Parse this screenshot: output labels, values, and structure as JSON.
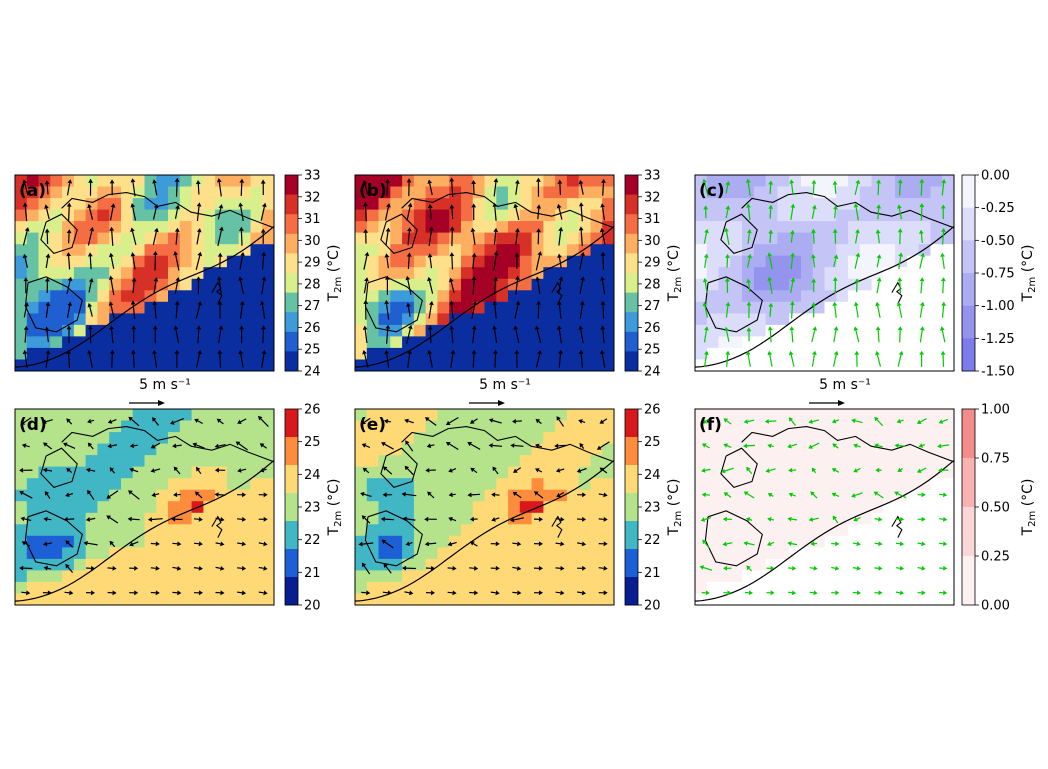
{
  "figure": {
    "panels": [
      {
        "label": "(a)",
        "kind": "abs",
        "scale": "warm",
        "arrow_color": "#000000",
        "background_shift": 0
      },
      {
        "label": "(b)",
        "kind": "abs",
        "scale": "warm",
        "arrow_color": "#000000",
        "background_shift": 0.15
      },
      {
        "label": "(c)",
        "kind": "diff",
        "scale": "blue",
        "arrow_color": "#00cc00"
      },
      {
        "label": "(d)",
        "kind": "abs",
        "scale": "night",
        "arrow_color": "#000000",
        "background_shift": 0
      },
      {
        "label": "(e)",
        "kind": "abs",
        "scale": "night",
        "arrow_color": "#000000",
        "background_shift": 0.05
      },
      {
        "label": "(f)",
        "kind": "diff",
        "scale": "red",
        "arrow_color": "#00cc00"
      }
    ],
    "colorbars": [
      {
        "panel": "(a)",
        "ticks": [
          "33",
          "32",
          "31",
          "30",
          "29",
          "28",
          "27",
          "26",
          "25",
          "24"
        ],
        "colors": [
          "#a50026",
          "#d73027",
          "#f46d43",
          "#fdae61",
          "#fee08b",
          "#d9ef8b",
          "#66c2a5",
          "#3d9bd9",
          "#1f5fd0",
          "#0a2ea0"
        ]
      },
      {
        "panel": "(b)",
        "ticks": [
          "33",
          "32",
          "31",
          "30",
          "29",
          "28",
          "27",
          "26",
          "25",
          "24"
        ],
        "colors": [
          "#a50026",
          "#d73027",
          "#f46d43",
          "#fdae61",
          "#fee08b",
          "#d9ef8b",
          "#66c2a5",
          "#3d9bd9",
          "#1f5fd0",
          "#0a2ea0"
        ]
      },
      {
        "panel": "(c)",
        "ticks": [
          "0.00",
          "-0.25",
          "-0.50",
          "-0.75",
          "-1.00",
          "-1.25",
          "-1.50"
        ],
        "colors": [
          "#f4f4ff",
          "#dcdcfb",
          "#c4c4f7",
          "#acacf3",
          "#9494ef",
          "#7c7ceb"
        ]
      },
      {
        "panel": "(d)",
        "ticks": [
          "26",
          "25",
          "24",
          "23",
          "22",
          "21",
          "20"
        ],
        "colors": [
          "#d7191c",
          "#fd8d3c",
          "#fed976",
          "#b5e38c",
          "#41b6c4",
          "#1d60d6",
          "#081d8f"
        ]
      },
      {
        "panel": "(e)",
        "ticks": [
          "26",
          "25",
          "24",
          "23",
          "22",
          "21",
          "20"
        ],
        "colors": [
          "#d7191c",
          "#fd8d3c",
          "#fed976",
          "#b5e38c",
          "#41b6c4",
          "#1d60d6",
          "#081d8f"
        ]
      },
      {
        "panel": "(f)",
        "ticks": [
          "1.00",
          "0.75",
          "0.50",
          "0.25",
          "0.00"
        ],
        "colors": [
          "#f48c8c",
          "#f8b2b2",
          "#fbd6d6",
          "#fdf0f0"
        ]
      }
    ],
    "colorbar_label_main": "T",
    "colorbar_label_sub": "2m",
    "colorbar_label_unit": " (°C)",
    "reference_arrow_label": "5 m s⁻¹",
    "reference_arrows_under": [
      "(a)",
      "(b)",
      "(c)"
    ]
  }
}
